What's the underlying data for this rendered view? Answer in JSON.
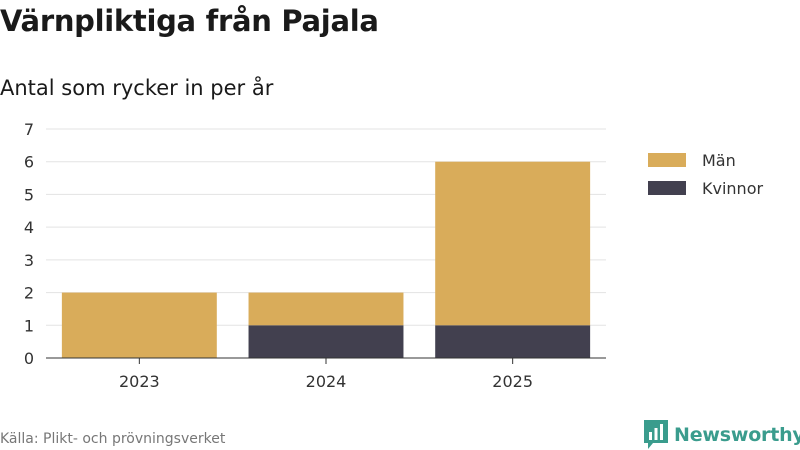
{
  "header": {
    "title": "Värnpliktiga från Pajala",
    "subtitle": "Antal som rycker in per år"
  },
  "chart_data": {
    "type": "bar",
    "stacked": true,
    "categories": [
      "2023",
      "2024",
      "2025"
    ],
    "series": [
      {
        "name": "Kvinnor",
        "values": [
          0,
          1,
          1
        ],
        "color": "#42404f"
      },
      {
        "name": "Män",
        "values": [
          2,
          1,
          5
        ],
        "color": "#d9ac5a"
      }
    ],
    "ylim": [
      0,
      7
    ],
    "yticks": [
      "0",
      "1",
      "2",
      "3",
      "4",
      "5",
      "6",
      "7"
    ],
    "grid": true,
    "legend": "right",
    "legend_order": [
      "Män",
      "Kvinnor"
    ]
  },
  "footer": {
    "source": "Källa: Plikt- och prövningsverket",
    "brand": "Newsworthy",
    "brand_icon": "newsworthy-logo-icon",
    "brand_color": "#3a9c8d"
  }
}
